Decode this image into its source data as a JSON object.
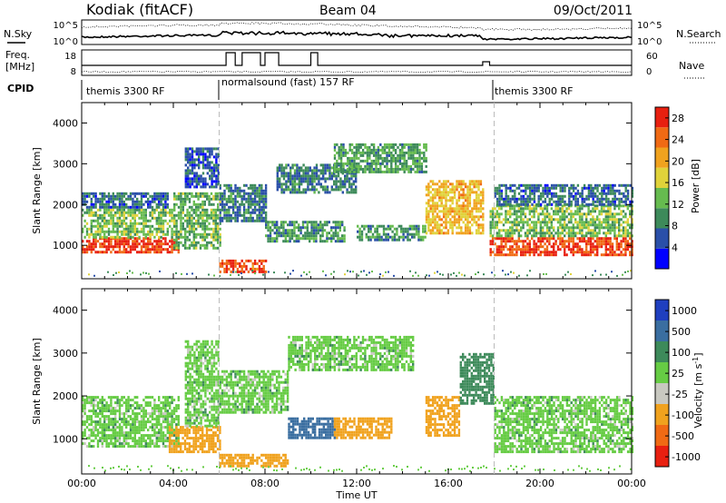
{
  "header": {
    "station": "Kodiak (fitACF)",
    "beam": "Beam 04",
    "date": "09/Oct/2011"
  },
  "noise_panel": {
    "left_label": "N.Sky",
    "right_label": "N.Search",
    "left_ticks": [
      "10^5",
      "10^0"
    ],
    "right_ticks": [
      "10^5",
      "10^0"
    ]
  },
  "freq_panel": {
    "left_label_line1": "Freq.",
    "left_label_line2": "[MHz]",
    "right_label": "Nave",
    "left_ticks": [
      "18",
      "8"
    ],
    "right_ticks": [
      "60",
      "0"
    ]
  },
  "cpid_panel": {
    "label": "CPID",
    "segments": [
      {
        "name": "themis 3300 RF",
        "start_hour": 0
      },
      {
        "name": "normalsound (fast) 157 RF",
        "start_hour": 6
      },
      {
        "name": "themis 3300 RF",
        "start_hour": 18
      }
    ]
  },
  "colors": {
    "power_scale": [
      "#0000ff",
      "#2a4fa8",
      "#3d8a5a",
      "#66bb4f",
      "#e0d23a",
      "#f0a21e",
      "#f06a14",
      "#e82010"
    ],
    "velocity_scale": [
      "#1f3fbf",
      "#3a6ea0",
      "#3d8a5a",
      "#66cc44",
      "#c8c8c0",
      "#f0a21e",
      "#f06a14",
      "#e82010"
    ]
  },
  "chart_data": [
    {
      "type": "heatmap",
      "ylabel": "Slant Range [km]",
      "xlabel": "Time UT",
      "xlim": [
        0,
        24
      ],
      "ylim": [
        180,
        4500
      ],
      "x_ticks": [
        "00:00",
        "04:00",
        "08:00",
        "12:00",
        "16:00",
        "20:00",
        "00:00"
      ],
      "y_ticks": [
        "1000",
        "2000",
        "3000",
        "4000"
      ],
      "colorbar": {
        "label": "Power [dB]",
        "ticks": [
          "4",
          "8",
          "12",
          "16",
          "20",
          "24",
          "28"
        ],
        "range": [
          0,
          30
        ]
      },
      "echo_bands": [
        {
          "x0": 0.0,
          "x1": 4.2,
          "y0": 800,
          "y1": 1200,
          "value": 27
        },
        {
          "x0": 0.0,
          "x1": 4.0,
          "y0": 1200,
          "y1": 1900,
          "value": 13
        },
        {
          "x0": 0.0,
          "x1": 3.8,
          "y0": 1900,
          "y1": 2300,
          "value": 7
        },
        {
          "x0": 4.0,
          "x1": 6.0,
          "y0": 900,
          "y1": 2300,
          "value": 12
        },
        {
          "x0": 4.5,
          "x1": 6.0,
          "y0": 2400,
          "y1": 3400,
          "value": 6
        },
        {
          "x0": 6.0,
          "x1": 8.0,
          "y0": 1600,
          "y1": 2500,
          "value": 8
        },
        {
          "x0": 6.0,
          "x1": 8.0,
          "y0": 350,
          "y1": 650,
          "value": 26
        },
        {
          "x0": 8.0,
          "x1": 11.5,
          "y0": 1100,
          "y1": 1600,
          "value": 10
        },
        {
          "x0": 8.5,
          "x1": 12.0,
          "y0": 2300,
          "y1": 3000,
          "value": 8
        },
        {
          "x0": 11.0,
          "x1": 15.0,
          "y0": 2800,
          "y1": 3500,
          "value": 11
        },
        {
          "x0": 12.0,
          "x1": 15.0,
          "y0": 1100,
          "y1": 1500,
          "value": 10
        },
        {
          "x0": 15.0,
          "x1": 17.5,
          "y0": 1300,
          "y1": 2600,
          "value": 19
        },
        {
          "x0": 17.8,
          "x1": 24.0,
          "y0": 750,
          "y1": 1200,
          "value": 27
        },
        {
          "x0": 17.8,
          "x1": 24.0,
          "y0": 1200,
          "y1": 2000,
          "value": 13
        },
        {
          "x0": 18.0,
          "x1": 24.0,
          "y0": 2000,
          "y1": 2500,
          "value": 7
        }
      ]
    },
    {
      "type": "heatmap",
      "ylabel": "Slant Range [km]",
      "xlabel": "Time UT",
      "xlim": [
        0,
        24
      ],
      "ylim": [
        180,
        4500
      ],
      "x_ticks": [
        "00:00",
        "04:00",
        "08:00",
        "12:00",
        "16:00",
        "20:00",
        "00:00"
      ],
      "y_ticks": [
        "1000",
        "2000",
        "3000",
        "4000"
      ],
      "colorbar": {
        "label": "Velocity [m s^-1]",
        "ticks": [
          "1000",
          "500",
          "100",
          "25",
          "-25",
          "-100",
          "-500",
          "-1000"
        ]
      },
      "echo_bands": [
        {
          "x0": 0.0,
          "x1": 4.2,
          "y0": 800,
          "y1": 2000,
          "value": 0
        },
        {
          "x0": 3.8,
          "x1": 6.0,
          "y0": 700,
          "y1": 1300,
          "value": -300
        },
        {
          "x0": 4.5,
          "x1": 6.0,
          "y0": 1300,
          "y1": 3300,
          "value": 0
        },
        {
          "x0": 6.0,
          "x1": 9.0,
          "y0": 1600,
          "y1": 2600,
          "value": 0
        },
        {
          "x0": 6.0,
          "x1": 9.0,
          "y0": 350,
          "y1": 650,
          "value": -150
        },
        {
          "x0": 9.0,
          "x1": 11.0,
          "y0": 1000,
          "y1": 1500,
          "value": 150
        },
        {
          "x0": 11.0,
          "x1": 13.5,
          "y0": 1000,
          "y1": 1500,
          "value": -200
        },
        {
          "x0": 9.0,
          "x1": 14.5,
          "y0": 2600,
          "y1": 3400,
          "value": 0
        },
        {
          "x0": 15.0,
          "x1": 16.5,
          "y0": 1100,
          "y1": 2000,
          "value": -400
        },
        {
          "x0": 16.5,
          "x1": 18.0,
          "y0": 1800,
          "y1": 3000,
          "value": 60
        },
        {
          "x0": 18.0,
          "x1": 24.0,
          "y0": 700,
          "y1": 2000,
          "value": 0
        }
      ]
    }
  ]
}
